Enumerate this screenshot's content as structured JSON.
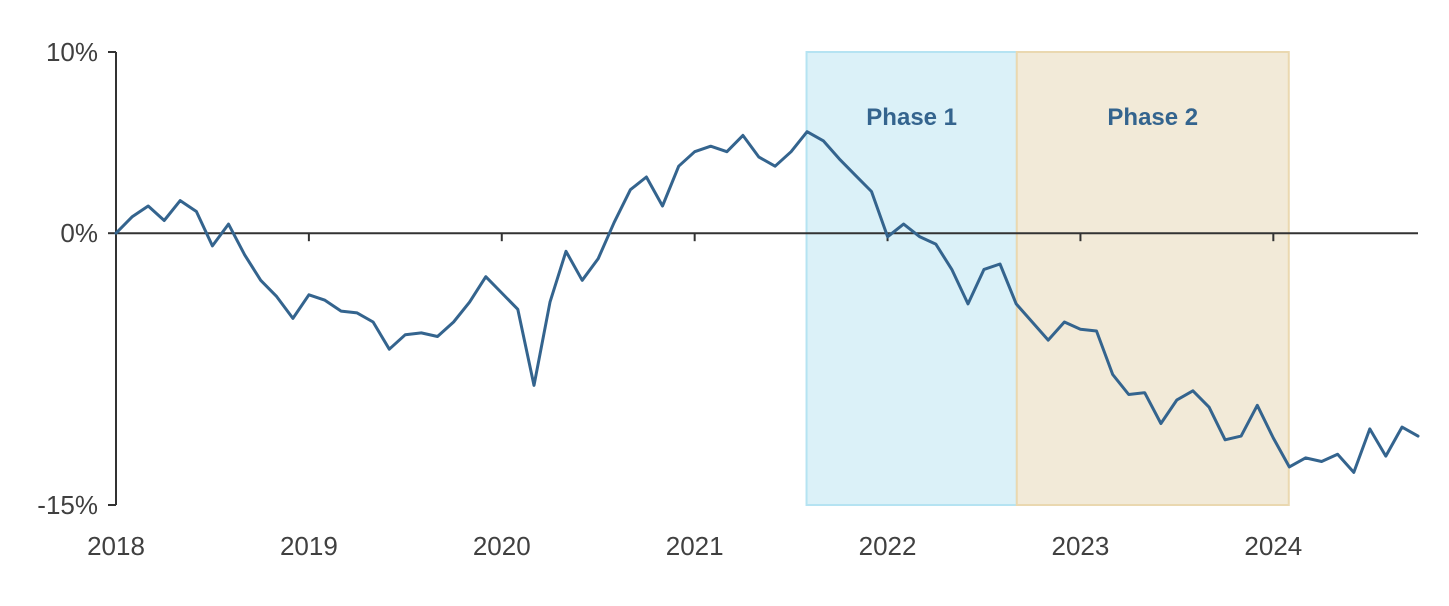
{
  "chart_data": {
    "type": "line",
    "title": "",
    "xlabel": "",
    "ylabel": "",
    "x_range": [
      2018.0,
      2024.75
    ],
    "ylim": [
      -15,
      10
    ],
    "y_ticks": [
      {
        "value": 10,
        "label": "10%"
      },
      {
        "value": 0,
        "label": "0%"
      },
      {
        "value": -15,
        "label": "-15%"
      }
    ],
    "x_ticks": [
      {
        "value": 2018,
        "label": "2018"
      },
      {
        "value": 2019,
        "label": "2019"
      },
      {
        "value": 2020,
        "label": "2020"
      },
      {
        "value": 2021,
        "label": "2021"
      },
      {
        "value": 2022,
        "label": "2022"
      },
      {
        "value": 2023,
        "label": "2023"
      },
      {
        "value": 2024,
        "label": "2024"
      }
    ],
    "grid": false,
    "line_color": "#34648e",
    "shaded_regions": [
      {
        "label": "Phase 1",
        "x_start": 2021.58,
        "x_end": 2022.67,
        "fill": "#dbf1f8",
        "edge": "#b5e3f2",
        "label_color": "#34648e"
      },
      {
        "label": "Phase 2",
        "x_start": 2022.67,
        "x_end": 2024.08,
        "fill": "#f2ead8",
        "edge": "#ead8b0",
        "label_color": "#34648e"
      }
    ],
    "series": [
      {
        "x": [
          2018.0,
          2018.083,
          2018.167,
          2018.25,
          2018.333,
          2018.417,
          2018.5,
          2018.583,
          2018.667,
          2018.75,
          2018.833,
          2018.917,
          2019.0,
          2019.083,
          2019.167,
          2019.25,
          2019.333,
          2019.417,
          2019.5,
          2019.583,
          2019.667,
          2019.75,
          2019.833,
          2019.917,
          2020.0,
          2020.083,
          2020.167,
          2020.25,
          2020.333,
          2020.417,
          2020.5,
          2020.583,
          2020.667,
          2020.75,
          2020.833,
          2020.917,
          2021.0,
          2021.083,
          2021.167,
          2021.25,
          2021.333,
          2021.417,
          2021.5,
          2021.583,
          2021.667,
          2021.75,
          2021.833,
          2021.917,
          2022.0,
          2022.083,
          2022.167,
          2022.25,
          2022.333,
          2022.417,
          2022.5,
          2022.583,
          2022.667,
          2022.75,
          2022.833,
          2022.917,
          2023.0,
          2023.083,
          2023.167,
          2023.25,
          2023.333,
          2023.417,
          2023.5,
          2023.583,
          2023.667,
          2023.75,
          2023.833,
          2023.917,
          2024.0,
          2024.083,
          2024.167,
          2024.25,
          2024.333,
          2024.417,
          2024.5,
          2024.583,
          2024.667,
          2024.75
        ],
        "y": [
          0.0,
          0.9,
          1.5,
          0.7,
          1.8,
          1.2,
          -0.7,
          0.5,
          -1.2,
          -2.6,
          -3.5,
          -4.7,
          -3.4,
          -3.7,
          -4.3,
          -4.4,
          -4.9,
          -6.4,
          -5.6,
          -5.5,
          -5.7,
          -4.9,
          -3.8,
          -2.4,
          -3.3,
          -4.2,
          -8.4,
          -3.8,
          -1.0,
          -2.6,
          -1.4,
          0.6,
          2.4,
          3.1,
          1.5,
          3.7,
          4.5,
          4.8,
          4.5,
          5.4,
          4.2,
          3.7,
          4.5,
          5.6,
          5.1,
          4.1,
          3.2,
          2.3,
          -0.2,
          0.5,
          -0.2,
          -0.6,
          -2.0,
          -3.9,
          -2.0,
          -1.7,
          -3.9,
          -4.9,
          -5.9,
          -4.9,
          -5.3,
          -5.4,
          -7.8,
          -8.9,
          -8.8,
          -10.5,
          -9.2,
          -8.7,
          -9.6,
          -11.4,
          -11.2,
          -9.5,
          -11.3,
          -12.9,
          -12.4,
          -12.6,
          -12.2,
          -13.2,
          -10.8,
          -12.3,
          -10.7,
          -11.2
        ]
      }
    ]
  }
}
